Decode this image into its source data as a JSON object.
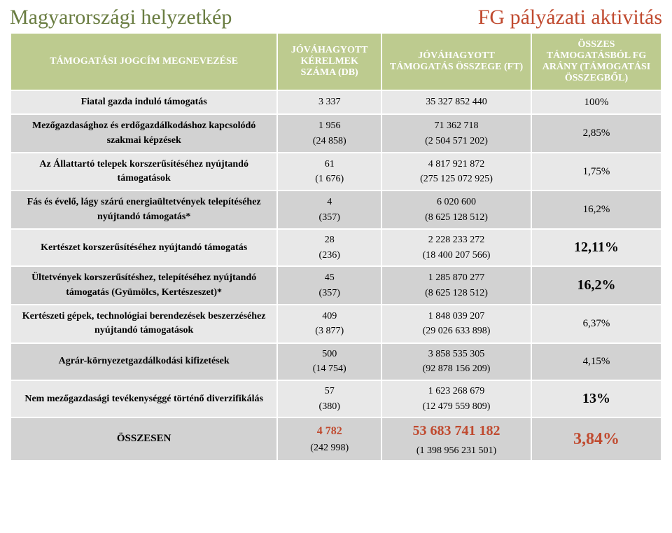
{
  "colors": {
    "header_bg": "#bdcb8f",
    "header_fg": "#ffffff",
    "title_left": "#6a7d42",
    "title_right": "#c04a2f",
    "row_odd": "#e8e8e8",
    "row_even": "#d2d2d2",
    "accent_red": "#c04a2f",
    "text": "#000000"
  },
  "typography": {
    "family": "Times New Roman",
    "title_size_pt": 30,
    "header_size_pt": 14,
    "body_size_pt": 14,
    "pct_big_size_pt": 20,
    "total_pct_size_pt": 24
  },
  "titles": {
    "left": "Magyarországi helyzetkép",
    "right": "FG pályázati aktivitás"
  },
  "columns": [
    "TÁMOGATÁSI JOGCÍM MEGNEVEZÉSE",
    "JÓVÁHAGYOTT KÉRELMEK SZÁMA (DB)",
    "JÓVÁHAGYOTT TÁMOGATÁS ÖSSZEGE (FT)",
    "ÖSSZES TÁMOGATÁSBÓL FG ARÁNY (TÁMOGATÁSI ÖSSZEGBŐL)"
  ],
  "rows": [
    {
      "name": "Fiatal gazda induló támogatás",
      "count": "3 337",
      "amount": "35 327 852 440",
      "pct": "100%",
      "pct_big": false
    },
    {
      "name": "Mezőgazdasághoz és erdőgazdálkodáshoz kapcsolódó szakmai képzések",
      "count": "1 956\n(24 858)",
      "amount": "71 362 718\n(2 504 571 202)",
      "pct": "2,85%",
      "pct_big": false
    },
    {
      "name": "Az Állattartó telepek korszerűsítéséhez nyújtandó támogatások",
      "count": "61\n(1 676)",
      "amount": "4 817 921 872\n(275 125 072 925)",
      "pct": "1,75%",
      "pct_big": false
    },
    {
      "name": "Fás és évelő, lágy szárú energiaültetvények telepítéséhez nyújtandó támogatás*",
      "count": "4\n(357)",
      "amount": "6 020 600\n(8 625 128 512)",
      "pct": "16,2%",
      "pct_big": false
    },
    {
      "name": "Kertészet korszerűsítéséhez nyújtandó támogatás",
      "count": "28\n(236)",
      "amount": "2 228 233 272\n(18 400 207 566)",
      "pct": "12,11%",
      "pct_big": true
    },
    {
      "name": "Ültetvények korszerűsítéshez, telepítéséhez nyújtandó támogatás (Gyümölcs, Kertészeszet)*",
      "count": "45\n(357)",
      "amount": "1 285 870 277\n(8 625 128 512)",
      "pct": "16,2%",
      "pct_big": true
    },
    {
      "name": "Kertészeti gépek, technológiai berendezések beszerzéséhez nyújtandó támogatások",
      "count": "409\n(3 877)",
      "amount": "1 848 039 207\n(29 026 633 898)",
      "pct": "6,37%",
      "pct_big": false
    },
    {
      "name": "Agrár-környezetgazdálkodási kifizetések",
      "count": "500\n(14 754)",
      "amount": "3 858 535 305\n(92 878 156 209)",
      "pct": "4,15%",
      "pct_big": false
    },
    {
      "name": "Nem mezőgazdasági tevékenységgé történő diverzifikálás",
      "count": "57\n(380)",
      "amount": "1 623 268 679\n(12 479 559 809)",
      "pct": "13%",
      "pct_big": true
    }
  ],
  "total": {
    "label": "ÖSSZESEN",
    "count_main": "4 782",
    "count_sub": "(242 998)",
    "amount_main": "53 683 741 182",
    "amount_sub": "(1 398 956 231 501)",
    "pct": "3,84%"
  }
}
